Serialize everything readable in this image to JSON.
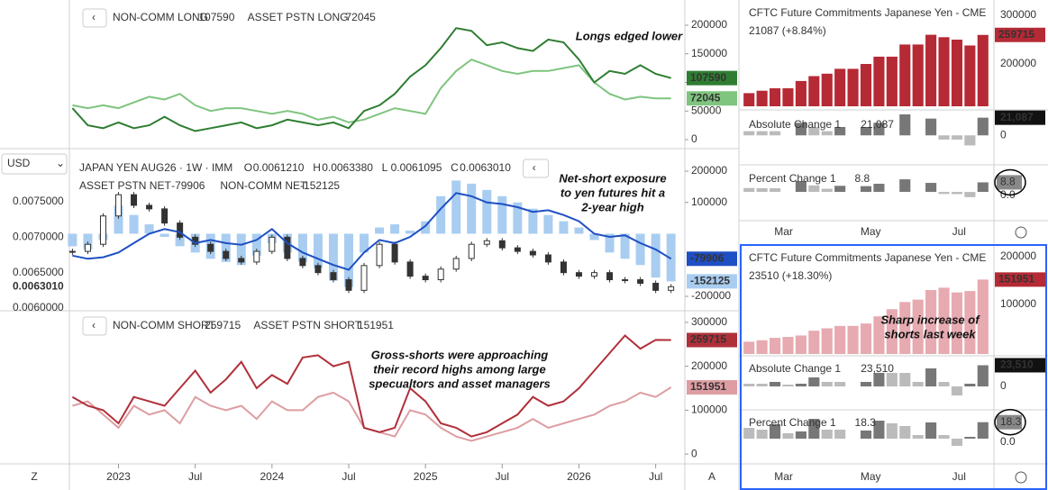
{
  "currency": "USD",
  "corner_left": "Z",
  "corner_right": "A",
  "x": [
    2022.7,
    2022.8,
    2022.9,
    2023.0,
    2023.1,
    2023.2,
    2023.3,
    2023.4,
    2023.5,
    2023.6,
    2023.7,
    2023.8,
    2023.9,
    2024.0,
    2024.1,
    2024.2,
    2024.3,
    2024.4,
    2024.5,
    2024.6,
    2024.7,
    2024.8,
    2024.9,
    2025.0,
    2025.1,
    2025.2,
    2025.3,
    2025.4,
    2025.5,
    2025.6,
    2025.7,
    2025.8,
    2025.9,
    2026.0,
    2026.1,
    2026.2,
    2026.3,
    2026.4,
    2026.5,
    2026.6
  ],
  "xlim": [
    2022.68,
    2026.69
  ],
  "xticks": [
    2023,
    {
      "value": 2023.5,
      "label": "Jul"
    },
    2024,
    {
      "value": 2024.5,
      "label": "Jul"
    },
    2025,
    {
      "value": 2025.5,
      "label": "Jul"
    },
    2026,
    {
      "value": 2026.5,
      "label": "Jul"
    }
  ],
  "panes": [
    {
      "annotation": [
        "Longs edged lower"
      ],
      "ylim": [
        -12600,
        236200
      ],
      "yticks": [
        200000,
        150000,
        100000,
        50000,
        0
      ],
      "series": [
        {
          "name": "NON-COMM LONG",
          "color": "#2f7d32",
          "values": [
            55000,
            25000,
            20000,
            30000,
            20000,
            25000,
            40000,
            25000,
            15000,
            20000,
            25000,
            30000,
            20000,
            25000,
            35000,
            30000,
            25000,
            30000,
            20000,
            50000,
            60000,
            80000,
            110000,
            130000,
            160000,
            195000,
            190000,
            165000,
            170000,
            160000,
            155000,
            175000,
            170000,
            140000,
            100000,
            120000,
            115000,
            130000,
            115000,
            107590
          ]
        },
        {
          "name": "ASSET PSTN LONG",
          "color": "#7fc47f",
          "values": [
            60000,
            55000,
            60000,
            55000,
            65000,
            75000,
            70000,
            80000,
            60000,
            50000,
            55000,
            55000,
            50000,
            45000,
            50000,
            45000,
            35000,
            40000,
            30000,
            35000,
            45000,
            55000,
            50000,
            45000,
            90000,
            120000,
            140000,
            130000,
            120000,
            115000,
            120000,
            120000,
            125000,
            130000,
            100000,
            80000,
            70000,
            75000,
            72000,
            72045
          ]
        }
      ]
    },
    {
      "annotation": [
        "Net-short exposure",
        "to yen futures hit a",
        "2-year high"
      ],
      "symbol": "JAPAN YEN AUG26 · 1W · IMM",
      "ohlc": [
        {
          "name": "O",
          "value": "0.0061210"
        },
        {
          "name": "H",
          "value": "0.0063380"
        },
        {
          "name": "L",
          "value": "0.0061095"
        },
        {
          "name": "C",
          "value": "0.0063010"
        }
      ],
      "ylim": [
        -240300,
        266200
      ],
      "yticks": [
        200000,
        100000,
        -200000
      ],
      "price_ylim": [
        0.0059873,
        0.008225
      ],
      "price_yticks": [
        {
          "value": 0.0075,
          "label": "0.0075000"
        },
        {
          "value": 0.007,
          "label": "0.0070000"
        },
        {
          "value": 0.0065,
          "label": "0.0065000"
        },
        {
          "value": 0.006,
          "label": "0.0060000"
        }
      ],
      "closes": [
        0.0068,
        0.0069,
        0.0073,
        0.0076,
        0.00745,
        0.0074,
        0.0072,
        0.007,
        0.0069,
        0.0068,
        0.0067,
        0.00665,
        0.0068,
        0.007,
        0.0067,
        0.0066,
        0.0065,
        0.0064,
        0.00625,
        0.0066,
        0.0069,
        0.00665,
        0.00645,
        0.0064,
        0.00655,
        0.0067,
        0.0069,
        0.00695,
        0.00685,
        0.0068,
        0.00675,
        0.00665,
        0.0065,
        0.00645,
        0.0065,
        0.0064,
        0.0064,
        0.00635,
        0.00625,
        0.006301
      ],
      "last_price_label": "0.0063010",
      "series": [
        {
          "name": "ASSET PSTN NET",
          "color": "#1f4fc4",
          "values": [
            -70000,
            -80000,
            -75000,
            -60000,
            -30000,
            0,
            15000,
            5000,
            -30000,
            -20000,
            -30000,
            -35000,
            -20000,
            15000,
            -30000,
            -60000,
            -80000,
            -100000,
            -115000,
            -60000,
            -20000,
            -30000,
            -10000,
            25000,
            80000,
            130000,
            120000,
            100000,
            95000,
            85000,
            70000,
            75000,
            60000,
            40000,
            0,
            -10000,
            -5000,
            -30000,
            -50000,
            -79906
          ]
        },
        {
          "name": "NON-COMM NET",
          "color": "#a9cdf0",
          "values": [
            -40000,
            -50000,
            -20000,
            90000,
            60000,
            30000,
            -10000,
            -40000,
            -60000,
            -80000,
            -90000,
            -100000,
            -70000,
            -30000,
            -60000,
            -90000,
            -110000,
            -150000,
            -170000,
            -60000,
            20000,
            30000,
            10000,
            40000,
            120000,
            170000,
            160000,
            140000,
            120000,
            100000,
            80000,
            60000,
            40000,
            20000,
            -20000,
            -60000,
            -80000,
            -100000,
            -140000,
            -152125
          ]
        }
      ]
    },
    {
      "annotation": [
        "Gross-shorts were approaching",
        "their record highs among large",
        "specualtors and asset managers"
      ],
      "ylim": [
        -18200,
        322300
      ],
      "yticks": [
        300000,
        200000,
        100000,
        0
      ],
      "series": [
        {
          "name": "NON-COMM SHORT",
          "color": "#b0303a",
          "values": [
            130000,
            110000,
            100000,
            70000,
            130000,
            120000,
            110000,
            150000,
            190000,
            140000,
            170000,
            210000,
            150000,
            180000,
            160000,
            220000,
            225000,
            200000,
            210000,
            60000,
            50000,
            60000,
            150000,
            120000,
            70000,
            60000,
            40000,
            50000,
            70000,
            90000,
            130000,
            110000,
            120000,
            150000,
            190000,
            230000,
            270000,
            240000,
            260000,
            259715
          ]
        },
        {
          "name": "ASSET PSTN SHORT",
          "color": "#dd9da2",
          "values": [
            110000,
            120000,
            90000,
            60000,
            110000,
            90000,
            100000,
            70000,
            130000,
            110000,
            100000,
            110000,
            80000,
            120000,
            100000,
            100000,
            130000,
            140000,
            120000,
            60000,
            50000,
            40000,
            100000,
            90000,
            60000,
            40000,
            30000,
            40000,
            50000,
            60000,
            80000,
            60000,
            70000,
            80000,
            90000,
            110000,
            120000,
            140000,
            130000,
            151951
          ]
        }
      ]
    }
  ],
  "cot": [
    {
      "title": "CFTC Future Commitments Japanese Yen - CME",
      "change": "21087 (+8.84%)",
      "color": "#b52a35",
      "ylim": [
        113000,
        322200
      ],
      "yticks": [
        300000,
        200000
      ],
      "values": [
        140000,
        145000,
        150000,
        150000,
        165000,
        175000,
        180000,
        190000,
        190000,
        200000,
        215000,
        215000,
        240000,
        240000,
        260000,
        255000,
        250000,
        238000,
        259715
      ],
      "abs": {
        "label": "Absolute Change 1",
        "value_label": "21,087",
        "ylim": [
          -33000,
          25000
        ],
        "yticks": [
          0
        ],
        "values": [
          5000,
          5000,
          5000,
          0,
          15000,
          10000,
          5000,
          10000,
          0,
          10000,
          15000,
          0,
          25000,
          0,
          20000,
          -5000,
          -5000,
          -12000,
          21087
        ]
      },
      "pct": {
        "label": "Percent Change 1",
        "value_label": "8.8",
        "ylim": [
          -24.8,
          21.6
        ],
        "yticks": [
          {
            "value": 0,
            "label": "0.0"
          }
        ],
        "values": [
          3.6,
          3.4,
          3.4,
          0,
          10,
          6,
          2.9,
          5.6,
          0,
          5.3,
          7.5,
          0,
          11.6,
          0,
          8.3,
          -1.9,
          -2,
          -4.8,
          8.8
        ]
      }
    },
    {
      "title": "CFTC Future Commitments Japanese Yen - CME",
      "change": "23510 (+18.30%)",
      "color": "#e6aab0",
      "annotation": [
        "Sharp increase of",
        "shorts last week"
      ],
      "ylim": [
        -3700,
        214800
      ],
      "yticks": [
        200000,
        100000
      ],
      "values": [
        22000,
        25000,
        30000,
        32000,
        35000,
        45000,
        50000,
        55000,
        55000,
        60000,
        75000,
        90000,
        105000,
        110000,
        130000,
        135000,
        125000,
        128000,
        151951
      ],
      "abs": {
        "label": "Absolute Change 1",
        "value_label": "23,510",
        "ylim": [
          -26000,
          31000
        ],
        "yticks": [
          0
        ],
        "values": [
          3000,
          3000,
          5000,
          2000,
          3000,
          10000,
          5000,
          5000,
          0,
          5000,
          15000,
          15000,
          15000,
          5000,
          20000,
          5000,
          -10000,
          3000,
          23510
        ]
      },
      "pct": {
        "label": "Percent Change 1",
        "value_label": "18.3",
        "ylim": [
          -28,
          29
        ],
        "yticks": [
          {
            "value": 0,
            "label": "0.0"
          }
        ],
        "values": [
          12,
          10,
          16,
          6,
          8,
          22,
          10,
          10,
          0,
          9,
          20,
          17,
          14,
          4,
          18,
          4,
          -8,
          2,
          18.3
        ]
      }
    }
  ],
  "months": [
    "Mar",
    "May",
    "Jul"
  ]
}
